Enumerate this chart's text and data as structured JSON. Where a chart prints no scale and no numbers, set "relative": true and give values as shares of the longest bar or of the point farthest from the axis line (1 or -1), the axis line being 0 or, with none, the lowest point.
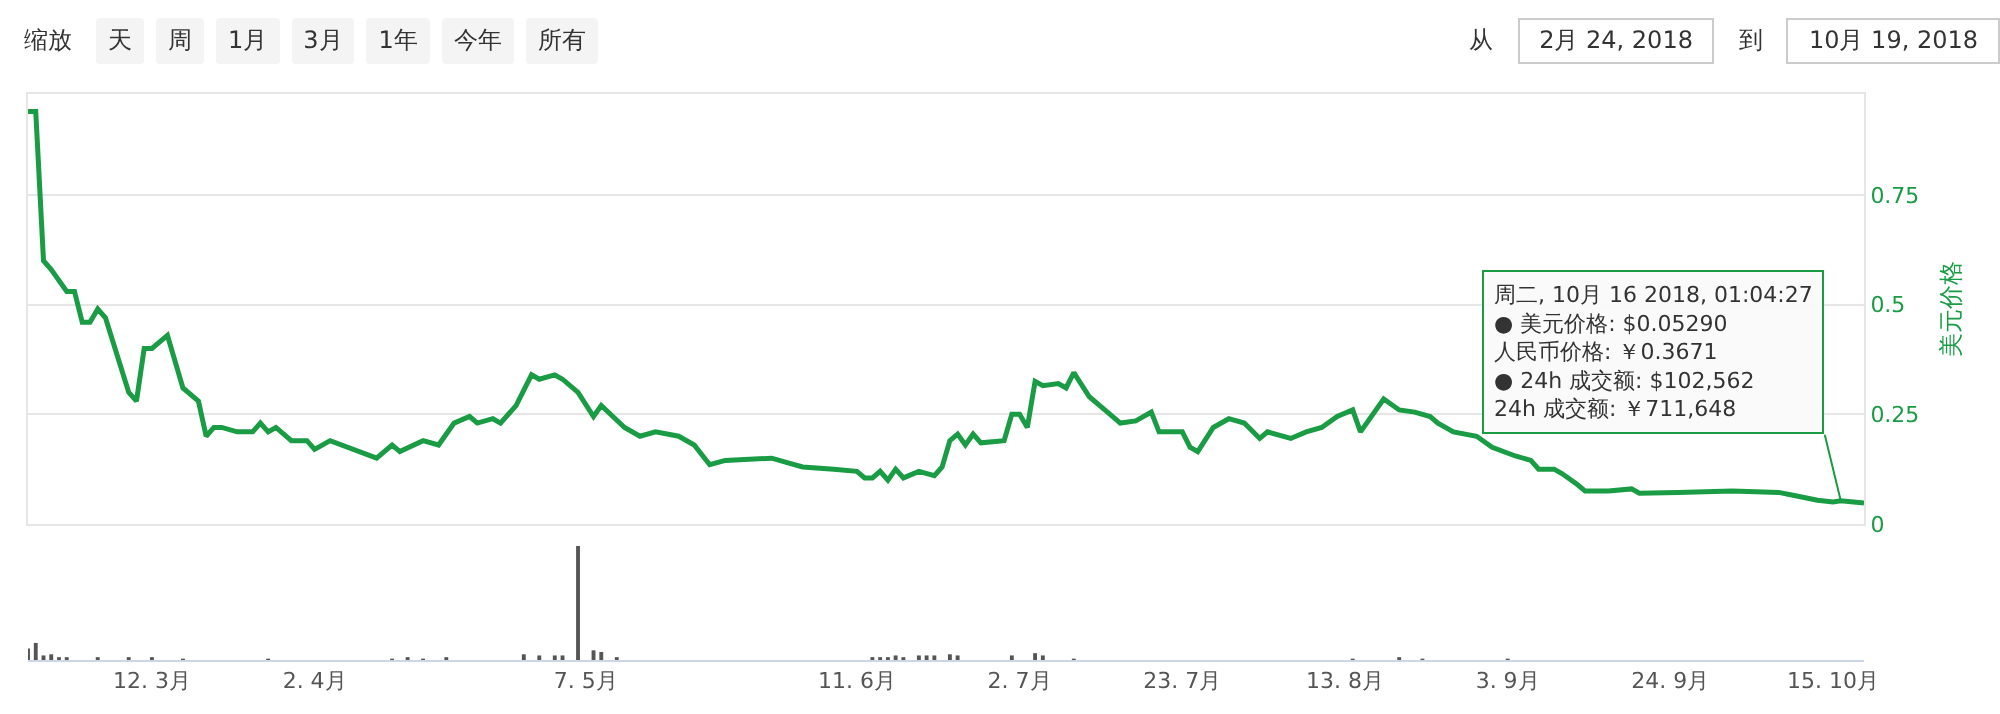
{
  "chart_data": [
    {
      "type": "line",
      "ylabel": "美元价格",
      "grid": "y",
      "tick_labels": "y",
      "xlim": [
        "2018-02-24",
        "2018-10-19"
      ],
      "ylim": [
        0,
        0.98
      ],
      "yticks": [
        0,
        0.25,
        0.5,
        0.75
      ],
      "x": [
        "2018-02-24",
        "2018-02-25",
        "2018-02-26",
        "2018-02-27",
        "2018-03-01",
        "2018-03-02",
        "2018-03-03",
        "2018-03-04",
        "2018-03-05",
        "2018-03-06",
        "2018-03-09",
        "2018-03-10",
        "2018-03-11",
        "2018-03-12",
        "2018-03-14",
        "2018-03-16",
        "2018-03-18",
        "2018-03-19",
        "2018-03-20",
        "2018-03-21",
        "2018-03-23",
        "2018-03-25",
        "2018-03-26",
        "2018-03-27",
        "2018-03-28",
        "2018-03-30",
        "2018-04-01",
        "2018-04-02",
        "2018-04-04",
        "2018-04-10",
        "2018-04-12",
        "2018-04-13",
        "2018-04-16",
        "2018-04-18",
        "2018-04-20",
        "2018-04-22",
        "2018-04-23",
        "2018-04-25",
        "2018-04-26",
        "2018-04-28",
        "2018-04-30",
        "2018-05-01",
        "2018-05-03",
        "2018-05-04",
        "2018-05-06",
        "2018-05-08",
        "2018-05-09",
        "2018-05-12",
        "2018-05-14",
        "2018-05-16",
        "2018-05-19",
        "2018-05-21",
        "2018-05-23",
        "2018-05-25",
        "2018-05-31",
        "2018-06-02",
        "2018-06-04",
        "2018-06-08",
        "2018-06-11",
        "2018-06-12",
        "2018-06-13",
        "2018-06-14",
        "2018-06-15",
        "2018-06-16",
        "2018-06-17",
        "2018-06-19",
        "2018-06-21",
        "2018-06-22",
        "2018-06-23",
        "2018-06-24",
        "2018-06-25",
        "2018-06-26",
        "2018-06-27",
        "2018-06-30",
        "2018-07-01",
        "2018-07-02",
        "2018-07-03",
        "2018-07-04",
        "2018-07-05",
        "2018-07-07",
        "2018-07-08",
        "2018-07-09",
        "2018-07-11",
        "2018-07-13",
        "2018-07-15",
        "2018-07-17",
        "2018-07-19",
        "2018-07-20",
        "2018-07-23",
        "2018-07-24",
        "2018-07-25",
        "2018-07-27",
        "2018-07-29",
        "2018-07-31",
        "2018-08-02",
        "2018-08-03",
        "2018-08-06",
        "2018-08-08",
        "2018-08-10",
        "2018-08-12",
        "2018-08-14",
        "2018-08-15",
        "2018-08-18",
        "2018-08-20",
        "2018-08-22",
        "2018-08-24",
        "2018-08-25",
        "2018-08-27",
        "2018-08-30",
        "2018-09-01",
        "2018-09-04",
        "2018-09-06",
        "2018-09-07",
        "2018-09-09",
        "2018-09-10",
        "2018-09-12",
        "2018-09-13",
        "2018-09-16",
        "2018-09-19",
        "2018-09-20",
        "2018-09-25",
        "2018-10-02",
        "2018-10-08",
        "2018-10-10",
        "2018-10-13",
        "2018-10-15",
        "2018-10-16",
        "2018-10-19"
      ],
      "series": [
        {
          "color": "#1a9c45",
          "values": [
            0.94,
            0.94,
            0.6,
            0.58,
            0.53,
            0.53,
            0.46,
            0.46,
            0.49,
            0.47,
            0.3,
            0.28,
            0.4,
            0.4,
            0.43,
            0.31,
            0.28,
            0.2,
            0.22,
            0.22,
            0.21,
            0.21,
            0.23,
            0.21,
            0.22,
            0.19,
            0.19,
            0.17,
            0.19,
            0.15,
            0.18,
            0.165,
            0.19,
            0.18,
            0.23,
            0.245,
            0.23,
            0.24,
            0.23,
            0.27,
            0.34,
            0.33,
            0.34,
            0.33,
            0.3,
            0.245,
            0.27,
            0.22,
            0.2,
            0.21,
            0.2,
            0.18,
            0.135,
            0.145,
            0.15,
            0.14,
            0.13,
            0.125,
            0.12,
            0.105,
            0.105,
            0.12,
            0.1,
            0.125,
            0.105,
            0.12,
            0.11,
            0.13,
            0.19,
            0.205,
            0.18,
            0.205,
            0.185,
            0.19,
            0.25,
            0.25,
            0.22,
            0.325,
            0.315,
            0.32,
            0.31,
            0.345,
            0.29,
            0.26,
            0.23,
            0.235,
            0.255,
            0.21,
            0.21,
            0.175,
            0.165,
            0.22,
            0.24,
            0.23,
            0.195,
            0.21,
            0.195,
            0.21,
            0.22,
            0.245,
            0.26,
            0.21,
            0.285,
            0.26,
            0.255,
            0.245,
            0.23,
            0.21,
            0.2,
            0.175,
            0.155,
            0.145,
            0.125,
            0.125,
            0.115,
            0.09,
            0.075,
            0.075,
            0.08,
            0.07,
            0.072,
            0.075,
            0.072,
            0.065,
            0.054,
            0.05,
            0.053,
            0.048
          ]
        }
      ],
      "annotations": [
        "缩放",
        "天",
        "周",
        "1月",
        "3月",
        "1年",
        "今年",
        "所有",
        "从",
        "2月 24, 2018",
        "到",
        "10月 19, 2018",
        {
          "text": "周二, 10月 16 2018, 01:04:27\n● 美元价格: $0.05290\n人民币价格: ￥0.3671\n● 24h 成交额: $102,562\n24h 成交额: ￥711,648",
          "x": "2018-10-16",
          "y": 0.0529
        }
      ]
    },
    {
      "type": "bar",
      "relative": true,
      "tick_labels": "x",
      "xlim": [
        "2018-02-24",
        "2018-10-19"
      ],
      "xticks": [
        {
          "value": "2018-03-12",
          "label": "12. 3月"
        },
        {
          "value": "2018-04-02",
          "label": "2. 4月"
        },
        {
          "value": "2018-05-07",
          "label": "7. 5月"
        },
        {
          "value": "2018-06-11",
          "label": "11. 6月"
        },
        {
          "value": "2018-07-02",
          "label": "2. 7月"
        },
        {
          "value": "2018-07-23",
          "label": "23. 7月"
        },
        {
          "value": "2018-08-13",
          "label": "13. 8月"
        },
        {
          "value": "2018-09-03",
          "label": "3. 9月"
        },
        {
          "value": "2018-09-24",
          "label": "24. 9月"
        },
        {
          "value": "2018-10-15",
          "label": "15. 10月"
        }
      ],
      "x": [
        "2018-02-24",
        "2018-02-25",
        "2018-02-26",
        "2018-02-27",
        "2018-02-28",
        "2018-03-01",
        "2018-03-05",
        "2018-03-09",
        "2018-03-12",
        "2018-03-16",
        "2018-03-27",
        "2018-04-12",
        "2018-04-14",
        "2018-04-16",
        "2018-04-19",
        "2018-04-29",
        "2018-05-01",
        "2018-05-03",
        "2018-05-04",
        "2018-05-06",
        "2018-05-08",
        "2018-05-09",
        "2018-05-11",
        "2018-06-13",
        "2018-06-14",
        "2018-06-15",
        "2018-06-16",
        "2018-06-17",
        "2018-06-19",
        "2018-06-20",
        "2018-06-21",
        "2018-06-23",
        "2018-06-24",
        "2018-07-01",
        "2018-07-04",
        "2018-07-05",
        "2018-07-09",
        "2018-08-14",
        "2018-08-20",
        "2018-08-23",
        "2018-09-03"
      ],
      "series": [
        {
          "color": "#555555",
          "values": [
            0.1,
            0.15,
            0.04,
            0.05,
            0.025,
            0.025,
            0.025,
            0.025,
            0.025,
            0.012,
            0.012,
            0.012,
            0.025,
            0.012,
            0.025,
            0.05,
            0.04,
            0.04,
            0.04,
            1,
            0.085,
            0.07,
            0.025,
            0.025,
            0.025,
            0.025,
            0.04,
            0.025,
            0.04,
            0.04,
            0.04,
            0.05,
            0.04,
            0.04,
            0.06,
            0.04,
            0.012,
            0.012,
            0.025,
            0.012,
            0.012
          ]
        }
      ]
    }
  ]
}
